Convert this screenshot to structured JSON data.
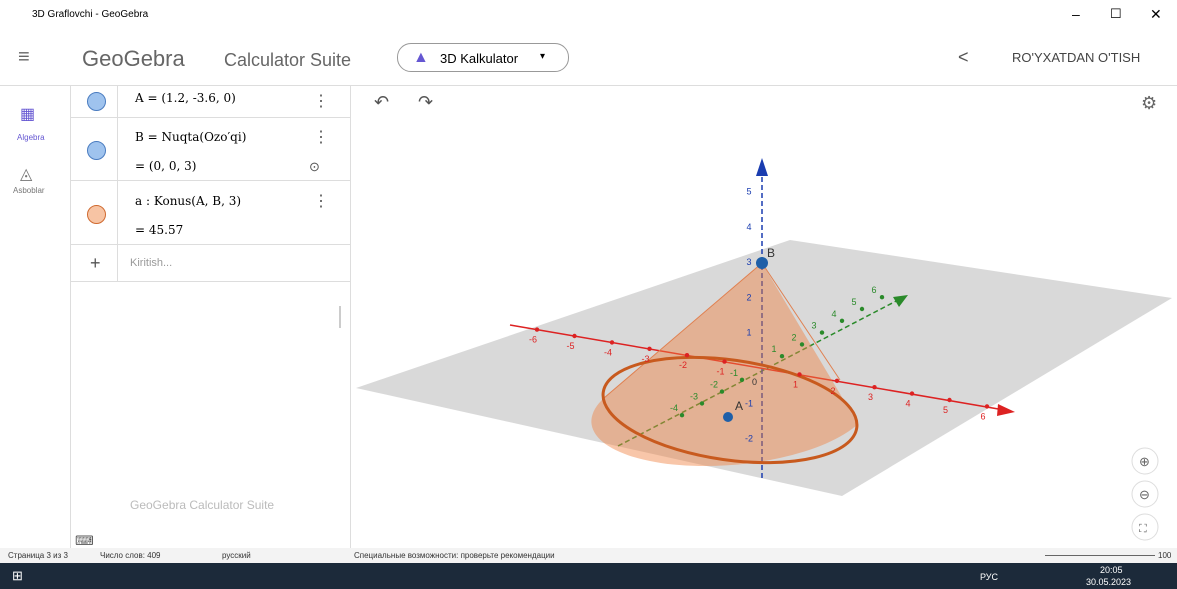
{
  "window": {
    "title": "3D Graflovchi - GeoGebra"
  },
  "header": {
    "logo": "GeoGebra",
    "suite": "Calculator Suite",
    "app": "3D Kalkulator",
    "signup": "RO'YXATDAN O'TISH"
  },
  "sidebar": {
    "items": [
      "Algebra",
      "Asboblar"
    ]
  },
  "algebra": {
    "rows": [
      {
        "definition": "A = (1.2, -3.6, 0)"
      },
      {
        "definition": "B = Nuqta(Ozo′qi)",
        "value": "= (0, 0, 3)"
      },
      {
        "definition": "a : Konus(A, B, 3)",
        "value": "= 45.57"
      }
    ],
    "input": "Kiritish...",
    "watermark": "GeoGebra Calculator Suite"
  },
  "view": {
    "x_axis": [
      -6,
      -5,
      -4,
      -3,
      -2,
      -1,
      1,
      2,
      3,
      4,
      5,
      6
    ],
    "y_axis": [
      -4,
      -3,
      -2,
      -1,
      1,
      2,
      3,
      4,
      5,
      6
    ],
    "z_axis": [
      -2,
      -1,
      1,
      2,
      3,
      4,
      5
    ],
    "origin": "0",
    "points": [
      "A",
      "B"
    ]
  },
  "status_bar": {
    "page": "Страница 3 из 3",
    "words": "Число слов: 409",
    "language": "русский",
    "accessibility": "Специальные возможности: проверьте рекомендации",
    "zoom": "100"
  },
  "taskbar": {
    "language": "РУС",
    "time": "20:05",
    "date": "30.05.2023"
  }
}
